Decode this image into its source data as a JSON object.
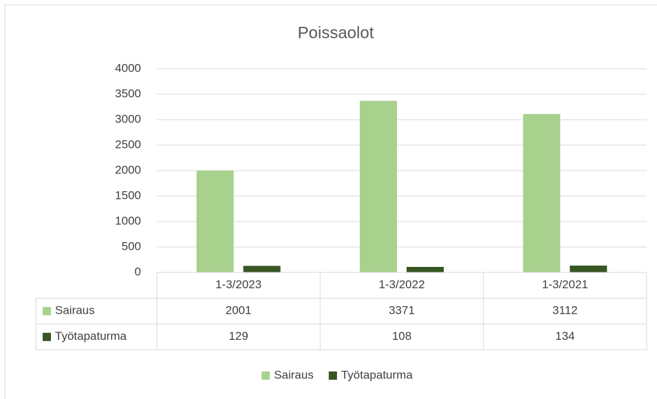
{
  "chart_data": {
    "type": "bar",
    "title": "Poissaolot",
    "categories": [
      "1-3/2023",
      "1-3/2022",
      "1-3/2021"
    ],
    "series": [
      {
        "name": "Sairaus",
        "color": "#a9d18e",
        "values": [
          2001,
          3371,
          3112
        ]
      },
      {
        "name": "Työtapaturma",
        "color": "#375623",
        "values": [
          129,
          108,
          134
        ]
      }
    ],
    "ylim": [
      0,
      4000
    ],
    "yticks": [
      0,
      500,
      1000,
      1500,
      2000,
      2500,
      3000,
      3500,
      4000
    ],
    "grid": true,
    "legend": "bottom",
    "data_table": true
  }
}
